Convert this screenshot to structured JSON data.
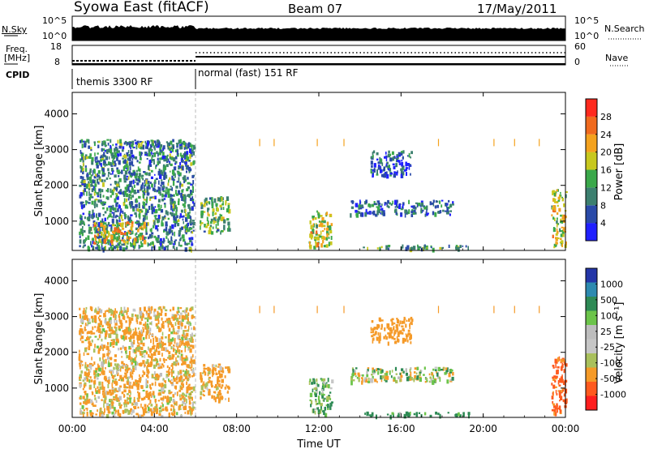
{
  "header": {
    "station": "Syowa East (fitACF)",
    "beam": "Beam 07",
    "date": "17/May/2011"
  },
  "top_panel": {
    "left_label": "N.Sky",
    "right_label": "N.Search",
    "left_ticks": [
      "10^5",
      "10^0"
    ],
    "right_ticks": [
      "10^5",
      "10^0"
    ]
  },
  "freq_panel": {
    "left_label_1": "Freq.",
    "left_label_2": "[MHz]",
    "right_label": "Nave",
    "left_ticks": [
      "18",
      "8"
    ],
    "right_ticks": [
      "60",
      "0"
    ]
  },
  "cpid": {
    "label": "CPID",
    "mode1": "themis 3300 RF",
    "mode2": "normal (fast) 151 RF",
    "switch_hour": 6
  },
  "colors": {
    "power": [
      "#2020ff",
      "#2a4aa8",
      "#3c7f6f",
      "#3aa84a",
      "#c8c81e",
      "#f4a21e",
      "#f06a1e",
      "#ff2a1e"
    ],
    "velocity": [
      "#ff1e1e",
      "#ff5a1e",
      "#f59a28",
      "#a9c05c",
      "#c6c6c6",
      "#bdbdbd",
      "#6cc44a",
      "#2e8a55",
      "#2d8ab0",
      "#2436a8"
    ]
  },
  "chart_data": [
    {
      "type": "heatmap",
      "title": "Power",
      "xlabel": "",
      "ylabel": "Slant Range [km]",
      "x_ticks": [
        "00:00",
        "04:00",
        "08:00",
        "12:00",
        "16:00",
        "20:00",
        "00:00"
      ],
      "y_ticks": [
        "1000",
        "2000",
        "3000",
        "4000"
      ],
      "xlim_hours": [
        0,
        24
      ],
      "ylim_km": [
        180,
        4600
      ],
      "colorbar": {
        "label": "Power [dB]",
        "ticks": [
          "4",
          "8",
          "12",
          "16",
          "20",
          "24",
          "28"
        ],
        "range": [
          0,
          30
        ],
        "unit": "dB"
      },
      "echo_regions": [
        {
          "t_start": 0.3,
          "t_end": 5.9,
          "r_start": 250,
          "r_end": 3300,
          "level": 10
        },
        {
          "t_start": 1.0,
          "t_end": 3.5,
          "r_start": 400,
          "r_end": 1000,
          "level": 20
        },
        {
          "t_start": 6.2,
          "t_end": 7.6,
          "r_start": 700,
          "r_end": 1700,
          "level": 14
        },
        {
          "t_start": 11.5,
          "t_end": 12.6,
          "r_start": 300,
          "r_end": 1300,
          "level": 18
        },
        {
          "t_start": 13.5,
          "t_end": 18.5,
          "r_start": 1200,
          "r_end": 1600,
          "level": 8
        },
        {
          "t_start": 14.5,
          "t_end": 16.5,
          "r_start": 2300,
          "r_end": 3000,
          "level": 6
        },
        {
          "t_start": 14.0,
          "t_end": 19.5,
          "r_start": 250,
          "r_end": 350,
          "level": 12
        },
        {
          "t_start": 23.3,
          "t_end": 24.0,
          "r_start": 300,
          "r_end": 1900,
          "level": 18
        }
      ]
    },
    {
      "type": "heatmap",
      "title": "Velocity",
      "xlabel": "Time UT",
      "ylabel": "Slant Range [km]",
      "x_ticks": [
        "00:00",
        "04:00",
        "08:00",
        "12:00",
        "16:00",
        "20:00",
        "00:00"
      ],
      "y_ticks": [
        "1000",
        "2000",
        "3000",
        "4000"
      ],
      "xlim_hours": [
        0,
        24
      ],
      "ylim_km": [
        180,
        4600
      ],
      "colorbar": {
        "label": "Velocity [m s⁻¹]",
        "ticks": [
          "1000",
          "500",
          "100",
          "25",
          "-25",
          "-100",
          "-500",
          "-1000"
        ],
        "range": [
          -1000,
          1000
        ],
        "unit": "m s⁻¹"
      },
      "echo_regions": [
        {
          "t_start": 0.3,
          "t_end": 5.9,
          "r_start": 250,
          "r_end": 3300,
          "level": -150
        },
        {
          "t_start": 6.2,
          "t_end": 7.6,
          "r_start": 700,
          "r_end": 1700,
          "level": -200
        },
        {
          "t_start": 11.5,
          "t_end": 12.6,
          "r_start": 300,
          "r_end": 1300,
          "level": 100
        },
        {
          "t_start": 13.5,
          "t_end": 18.5,
          "r_start": 1200,
          "r_end": 1600,
          "level": 0
        },
        {
          "t_start": 14.5,
          "t_end": 16.5,
          "r_start": 2300,
          "r_end": 3000,
          "level": -300
        },
        {
          "t_start": 14.0,
          "t_end": 19.5,
          "r_start": 250,
          "r_end": 350,
          "level": 200
        },
        {
          "t_start": 23.3,
          "t_end": 24.0,
          "r_start": 300,
          "r_end": 1900,
          "level": -600
        }
      ]
    }
  ]
}
